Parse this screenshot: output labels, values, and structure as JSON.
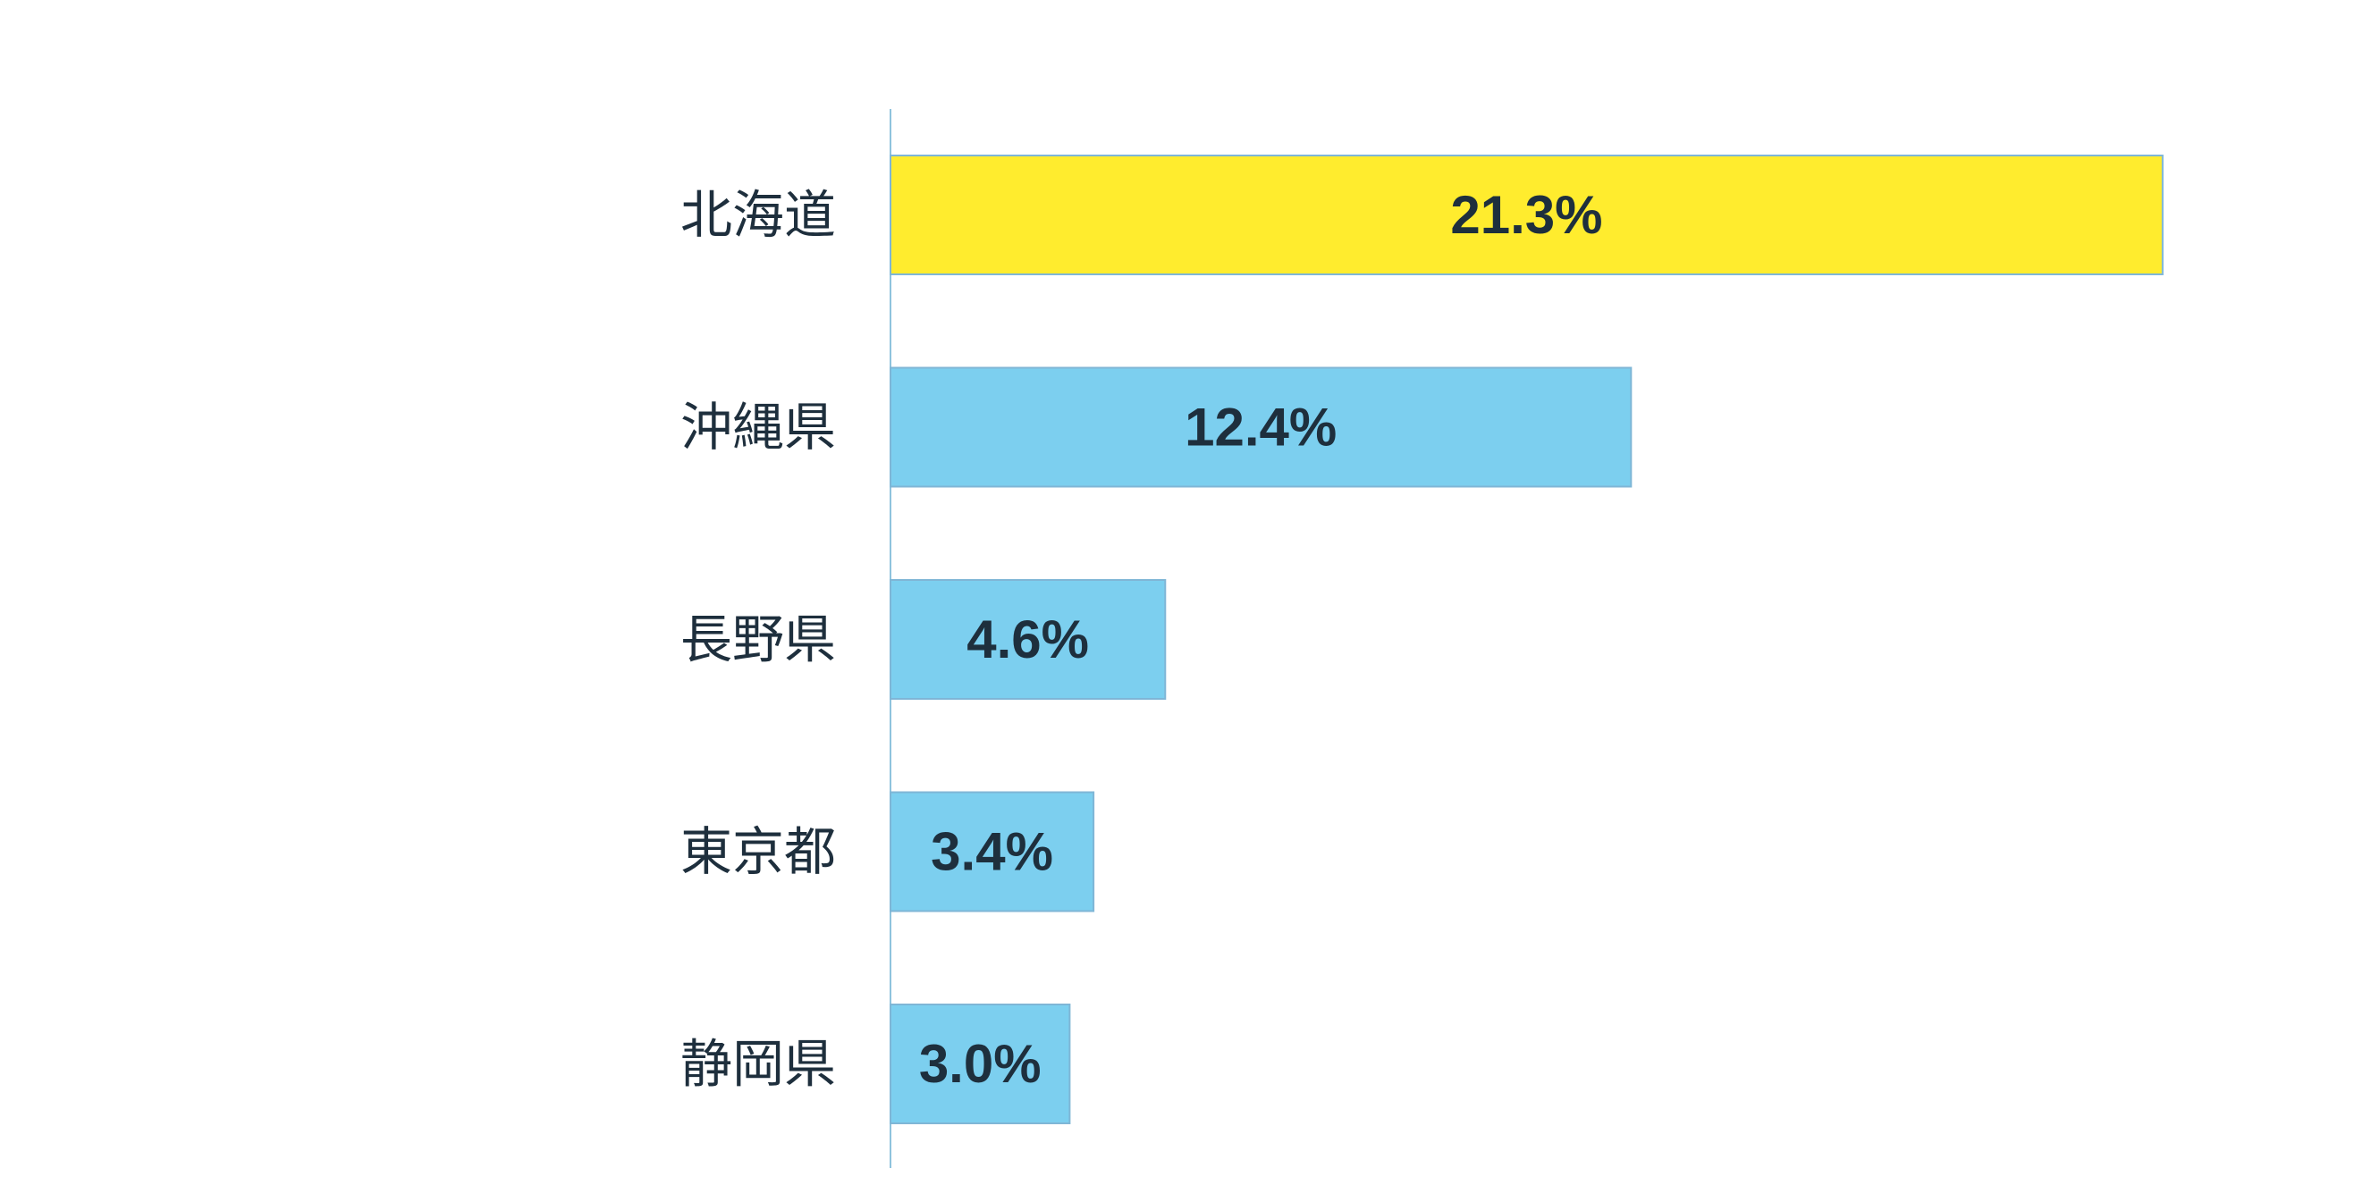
{
  "chart_data": {
    "type": "bar",
    "orientation": "horizontal",
    "title": "",
    "xlabel": "",
    "ylabel": "",
    "categories": [
      "北海道",
      "沖縄県",
      "長野県",
      "東京都",
      "静岡県"
    ],
    "values": [
      21.3,
      12.4,
      4.6,
      3.4,
      3.0
    ],
    "value_labels": [
      "21.3%",
      "12.4%",
      "4.6%",
      "3.4%",
      "3.0%"
    ],
    "unit": "%",
    "grid": false,
    "legend": "none",
    "highlight_index": 0,
    "colors": {
      "highlight": "#ffec2e",
      "bar": "#7ccfef",
      "bar_stroke": "#7fb6d6",
      "axis": "#8fc3dd",
      "text": "#1e2f3d"
    }
  }
}
